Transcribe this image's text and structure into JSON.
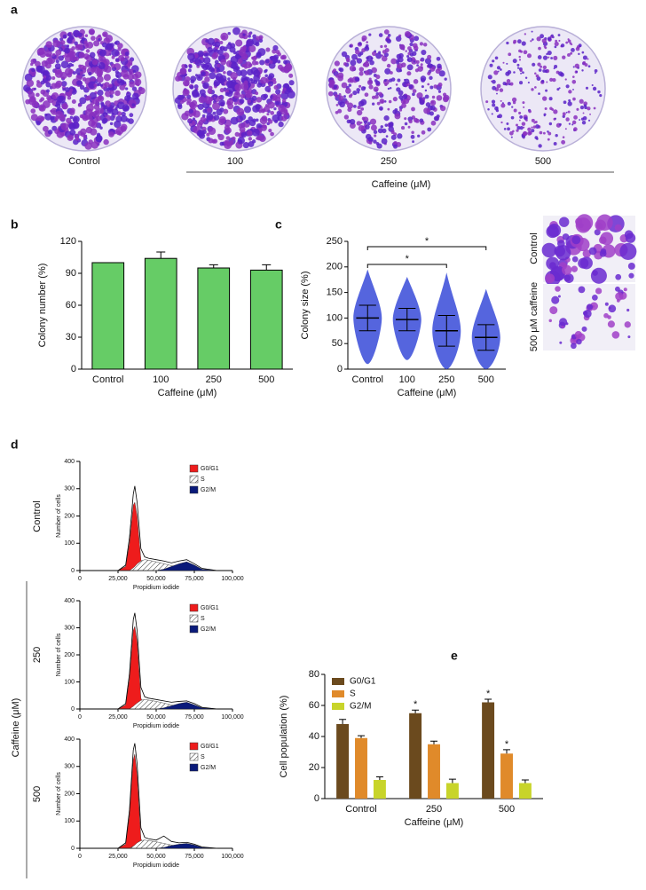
{
  "panel_labels": [
    "a",
    "b",
    "c",
    "d",
    "e"
  ],
  "panel_a": {
    "labels": [
      "Control",
      "100",
      "250",
      "500"
    ],
    "group_label": "Caffeine (μM)"
  },
  "panel_c_images": {
    "labels": [
      "Control",
      "500 μM caffeine"
    ]
  },
  "panel_d": {
    "row_labels": [
      "Control",
      "250",
      "500"
    ],
    "group_label": "Caffeine (μM)"
  },
  "chart_data": [
    {
      "type": "bar",
      "categories": [
        "Control",
        "100",
        "250",
        "500"
      ],
      "values": [
        100,
        104,
        95,
        93
      ],
      "errors": [
        0,
        6,
        3,
        5
      ],
      "color": "#66cc66",
      "ylim": [
        0,
        120
      ],
      "yticks": [
        0,
        30,
        60,
        90,
        120
      ],
      "ylabel": "Colony number (%)",
      "xlabel": "Caffeine (μM)"
    },
    {
      "type": "dot",
      "categories": [
        "Control",
        "100",
        "250",
        "500"
      ],
      "values": [
        100,
        97,
        75,
        62
      ],
      "errors": [
        25,
        22,
        30,
        25
      ],
      "color": "#2b3fd6",
      "ylim": [
        0,
        250
      ],
      "yticks": [
        0,
        50,
        100,
        150,
        200,
        250
      ],
      "ylabel": "Colony size (%)",
      "xlabel": "Caffeine (μM)",
      "significance": [
        {
          "from": "Control",
          "to": "250",
          "label": "*"
        },
        {
          "from": "Control",
          "to": "500",
          "label": "*"
        }
      ]
    },
    {
      "type": "area",
      "x": [
        25000,
        30000,
        32500,
        35000,
        36000,
        37500,
        40000,
        42500,
        45000,
        50000,
        55000,
        60000,
        65000,
        70000,
        75000,
        80000,
        90000
      ],
      "total": [
        0,
        20,
        120,
        280,
        310,
        250,
        80,
        50,
        45,
        40,
        35,
        28,
        35,
        40,
        25,
        8,
        0
      ],
      "series": [
        {
          "name": "G0/G1",
          "color": "#ee1c1c",
          "values": [
            0,
            15,
            100,
            240,
            250,
            200,
            40,
            5,
            0,
            0,
            0,
            0,
            0,
            0,
            0,
            0,
            0
          ]
        },
        {
          "name": "S",
          "color": "#ffffff",
          "hatch": true,
          "values": [
            0,
            0,
            0,
            10,
            15,
            25,
            35,
            40,
            38,
            32,
            25,
            18,
            10,
            5,
            2,
            0,
            0
          ]
        },
        {
          "name": "G2/M",
          "color": "#0a1a7a",
          "values": [
            0,
            0,
            0,
            0,
            0,
            0,
            0,
            0,
            0,
            0,
            5,
            15,
            25,
            32,
            20,
            5,
            0
          ]
        }
      ],
      "xlim": [
        0,
        100000
      ],
      "xticks": [
        0,
        {
          "value": 25000,
          "label": "25,000"
        },
        {
          "value": 50000,
          "label": "50,000"
        },
        {
          "value": 75000,
          "label": "75,000"
        },
        {
          "value": 100000,
          "label": "100,000"
        }
      ],
      "ylim": [
        0,
        400
      ],
      "yticks": [
        0,
        100,
        200,
        300,
        400
      ],
      "ylabel": "Number of cells",
      "xlabel": "Propidium iodide"
    },
    {
      "type": "area",
      "x": [
        25000,
        30000,
        32500,
        35000,
        36000,
        37500,
        40000,
        42500,
        45000,
        50000,
        55000,
        60000,
        65000,
        70000,
        75000,
        80000,
        90000
      ],
      "total": [
        0,
        20,
        130,
        330,
        355,
        290,
        80,
        45,
        40,
        35,
        30,
        25,
        28,
        30,
        20,
        6,
        0
      ],
      "series": [
        {
          "name": "G0/G1",
          "color": "#ee1c1c",
          "values": [
            0,
            15,
            110,
            290,
            305,
            250,
            40,
            5,
            0,
            0,
            0,
            0,
            0,
            0,
            0,
            0,
            0
          ]
        },
        {
          "name": "S",
          "color": "#ffffff",
          "hatch": true,
          "values": [
            0,
            0,
            0,
            10,
            15,
            22,
            32,
            35,
            33,
            28,
            22,
            15,
            8,
            4,
            2,
            0,
            0
          ]
        },
        {
          "name": "G2/M",
          "color": "#0a1a7a",
          "values": [
            0,
            0,
            0,
            0,
            0,
            0,
            0,
            0,
            0,
            0,
            4,
            12,
            20,
            25,
            15,
            4,
            0
          ]
        }
      ],
      "xlim": [
        0,
        100000
      ],
      "xticks": [
        0,
        {
          "value": 25000,
          "label": "25,000"
        },
        {
          "value": 50000,
          "label": "50,000"
        },
        {
          "value": 75000,
          "label": "75,000"
        },
        {
          "value": 100000,
          "label": "100,000"
        }
      ],
      "ylim": [
        0,
        400
      ],
      "yticks": [
        0,
        100,
        200,
        300,
        400
      ],
      "ylabel": "Number of cells",
      "xlabel": "Propidium iodide"
    },
    {
      "type": "area",
      "x": [
        25000,
        30000,
        32500,
        35000,
        36000,
        37500,
        40000,
        42500,
        45000,
        50000,
        55000,
        60000,
        65000,
        70000,
        75000,
        80000,
        90000
      ],
      "total": [
        0,
        20,
        140,
        360,
        385,
        310,
        75,
        40,
        35,
        30,
        45,
        25,
        20,
        22,
        15,
        5,
        0
      ],
      "series": [
        {
          "name": "G0/G1",
          "color": "#ee1c1c",
          "values": [
            0,
            15,
            120,
            325,
            345,
            270,
            35,
            5,
            0,
            0,
            0,
            0,
            0,
            0,
            0,
            0,
            0
          ]
        },
        {
          "name": "S",
          "color": "#ffffff",
          "hatch": true,
          "values": [
            0,
            0,
            0,
            8,
            12,
            20,
            28,
            30,
            28,
            24,
            18,
            12,
            6,
            3,
            1,
            0,
            0
          ]
        },
        {
          "name": "G2/M",
          "color": "#0a1a7a",
          "values": [
            0,
            0,
            0,
            0,
            0,
            0,
            0,
            0,
            0,
            0,
            3,
            10,
            15,
            18,
            12,
            3,
            0
          ]
        }
      ],
      "xlim": [
        0,
        100000
      ],
      "xticks": [
        0,
        {
          "value": 25000,
          "label": "25,000"
        },
        {
          "value": 50000,
          "label": "50,000"
        },
        {
          "value": 75000,
          "label": "75,000"
        },
        {
          "value": 100000,
          "label": "100,000"
        }
      ],
      "ylim": [
        0,
        400
      ],
      "yticks": [
        0,
        100,
        200,
        300,
        400
      ],
      "ylabel": "Number of cells",
      "xlabel": "Propidium iodide"
    },
    {
      "type": "grouped-bar",
      "categories": [
        "Control",
        "250",
        "500"
      ],
      "series": [
        {
          "name": "G0/G1",
          "color": "#6b4a1e",
          "values": [
            48,
            55,
            62
          ],
          "errors": [
            3,
            2,
            2
          ]
        },
        {
          "name": "S",
          "color": "#e08a2a",
          "values": [
            39,
            35,
            29
          ],
          "errors": [
            1.5,
            2,
            2.5
          ]
        },
        {
          "name": "G2/M",
          "color": "#c8d42a",
          "values": [
            12,
            10,
            10
          ],
          "errors": [
            2,
            2.5,
            2
          ]
        }
      ],
      "ylim": [
        0,
        80
      ],
      "yticks": [
        0,
        20,
        40,
        60,
        80
      ],
      "ylabel": "Cell population (%)",
      "xlabel": "Caffeine (μM)",
      "annotations": [
        {
          "category": "250",
          "series": "G0/G1",
          "text": "*"
        },
        {
          "category": "500",
          "series": "G0/G1",
          "text": "*"
        },
        {
          "category": "500",
          "series": "S",
          "text": "*"
        }
      ]
    }
  ]
}
